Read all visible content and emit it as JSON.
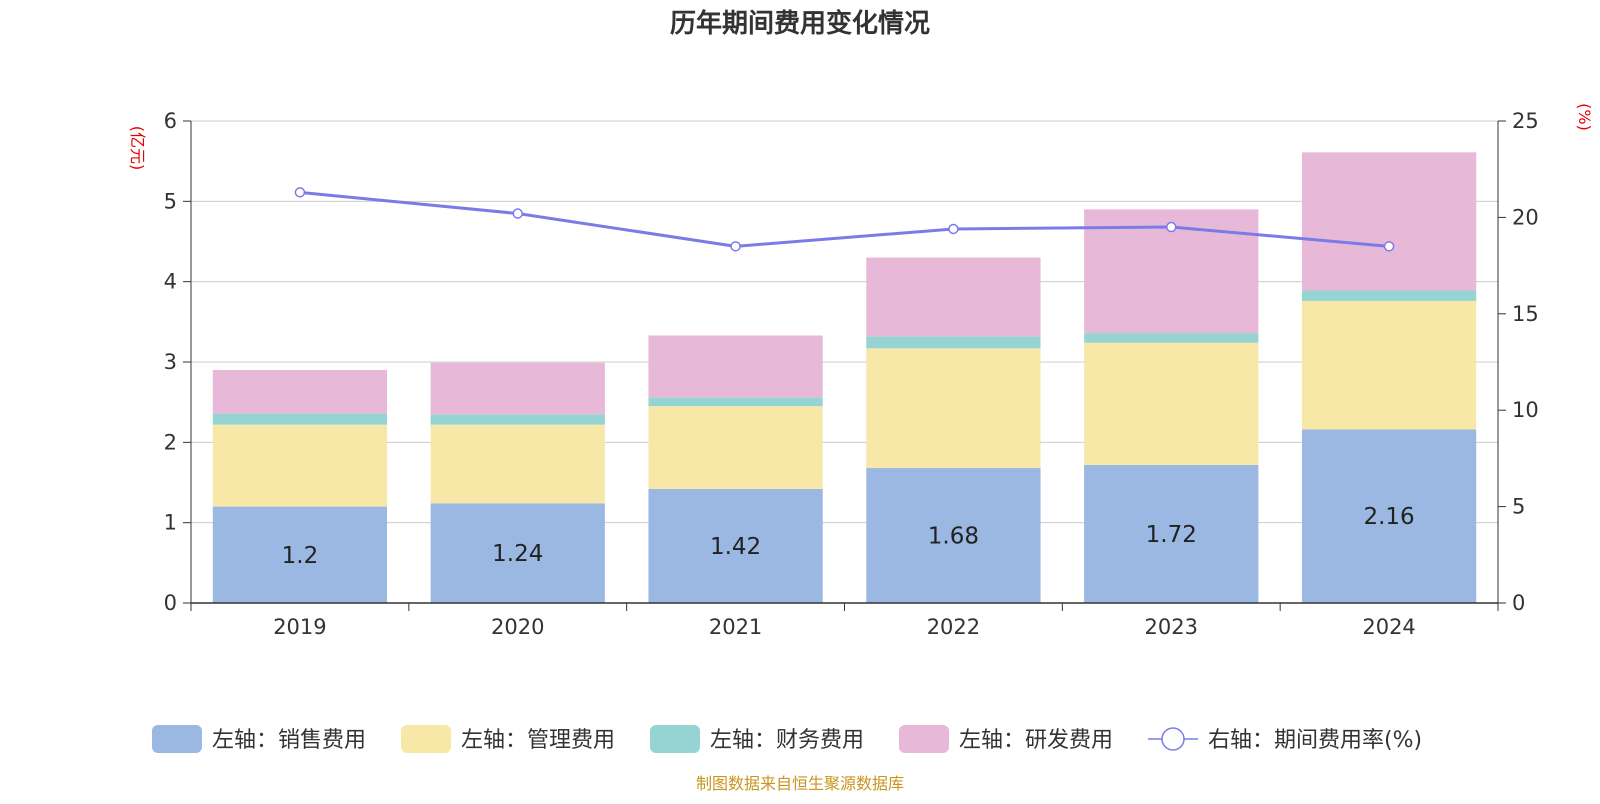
{
  "chart_data": {
    "type": "bar",
    "title": "历年期间费用变化情况",
    "left_axis_unit": "(亿元)",
    "right_axis_unit": "(%)",
    "categories": [
      "2019",
      "2020",
      "2021",
      "2022",
      "2023",
      "2024"
    ],
    "left_axis": {
      "min": 0,
      "max": 6,
      "ticks": [
        0,
        1,
        2,
        3,
        4,
        5,
        6
      ]
    },
    "right_axis": {
      "min": 0,
      "max": 25,
      "ticks": [
        0,
        5,
        10,
        15,
        20,
        25
      ]
    },
    "series": [
      {
        "name": "左轴：销售费用",
        "axis": "left",
        "kind": "bar",
        "color": "#9bb8e3",
        "values": [
          1.2,
          1.24,
          1.42,
          1.68,
          1.72,
          2.16
        ],
        "labels": [
          "1.2",
          "1.24",
          "1.42",
          "1.68",
          "1.72",
          "2.16"
        ]
      },
      {
        "name": "左轴：管理费用",
        "axis": "left",
        "kind": "bar",
        "color": "#f8e8a8",
        "values": [
          1.02,
          0.98,
          1.03,
          1.49,
          1.52,
          1.6
        ]
      },
      {
        "name": "左轴：财务费用",
        "axis": "left",
        "kind": "bar",
        "color": "#96d4d4",
        "values": [
          0.14,
          0.13,
          0.11,
          0.15,
          0.12,
          0.13
        ]
      },
      {
        "name": "左轴：研发费用",
        "axis": "left",
        "kind": "bar",
        "color": "#e8b8d8",
        "values": [
          0.54,
          0.64,
          0.77,
          0.98,
          1.54,
          1.72
        ]
      },
      {
        "name": "右轴：期间费用率(%)",
        "axis": "right",
        "kind": "line",
        "color": "#7b7be8",
        "values": [
          21.3,
          20.2,
          18.5,
          19.4,
          19.5,
          18.5
        ]
      }
    ],
    "grid": true,
    "legend_position": "bottom"
  },
  "footer": {
    "source": "制图数据来自恒生聚源数据库"
  }
}
